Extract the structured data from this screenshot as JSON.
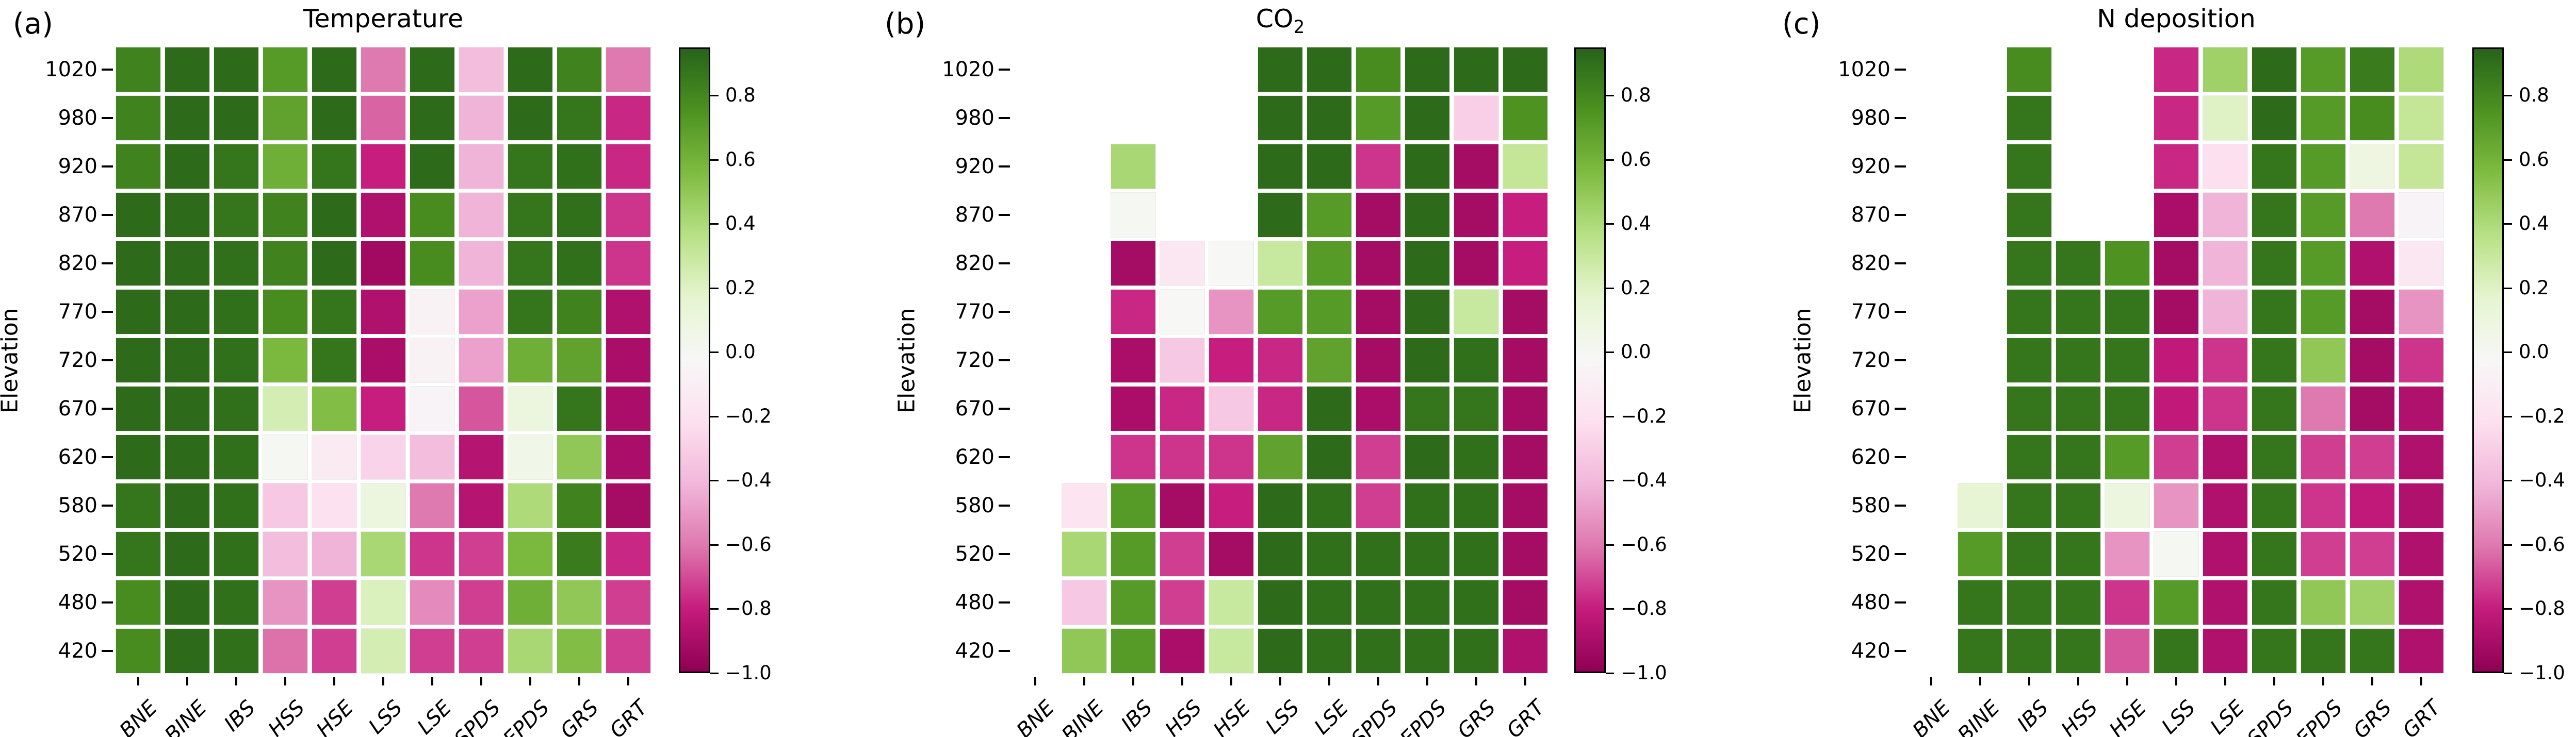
{
  "figure": {
    "background": "#ffffff",
    "colormap": "PiYG",
    "vmin": -1.0,
    "vmax": 0.95,
    "colorbar_tick_values": [
      0.8,
      0.6,
      0.4,
      0.2,
      0.0,
      -0.2,
      -0.4,
      -0.6,
      -0.8,
      -1.0
    ],
    "colorbar_tick_labels": [
      "0.8",
      "0.6",
      "0.4",
      "0.2",
      "0.0",
      "−0.2",
      "−0.4",
      "−0.6",
      "−0.8",
      "−1.0"
    ],
    "colormap_anchors": [
      "#8e0152",
      "#c51b7d",
      "#de77ae",
      "#f1b6da",
      "#fde0ef",
      "#f7f7f7",
      "#e6f5d0",
      "#b8e186",
      "#7fbc41",
      "#4d9221",
      "#276419"
    ]
  },
  "chart_data": [
    {
      "type": "heatmap",
      "panel_label": "(a)",
      "title": "Temperature",
      "title_sub": "",
      "ylabel": "Elevation",
      "y_categories": [
        "1020",
        "980",
        "920",
        "870",
        "820",
        "770",
        "720",
        "670",
        "620",
        "580",
        "520",
        "480",
        "420"
      ],
      "x_categories": [
        "BNE",
        "BINE",
        "IBS",
        "HSS",
        "HSE",
        "LSS",
        "LSE",
        "SPDS",
        "EPDS",
        "GRS",
        "GRT"
      ],
      "ylim": [
        -1.0,
        0.95
      ],
      "legend_position": "right-colorbar",
      "values": [
        [
          0.82,
          0.92,
          0.92,
          0.72,
          0.92,
          -0.6,
          0.92,
          -0.38,
          0.92,
          0.82,
          -0.6
        ],
        [
          0.82,
          0.92,
          0.92,
          0.68,
          0.92,
          -0.65,
          0.92,
          -0.42,
          0.92,
          0.88,
          -0.78
        ],
        [
          0.82,
          0.92,
          0.88,
          0.62,
          0.88,
          -0.8,
          0.92,
          -0.42,
          0.88,
          0.9,
          -0.78
        ],
        [
          0.92,
          0.92,
          0.88,
          0.82,
          0.92,
          -0.88,
          0.78,
          -0.42,
          0.88,
          0.9,
          -0.75
        ],
        [
          0.92,
          0.92,
          0.9,
          0.82,
          0.92,
          -0.93,
          0.78,
          -0.42,
          0.88,
          0.9,
          -0.75
        ],
        [
          0.92,
          0.92,
          0.9,
          0.78,
          0.88,
          -0.88,
          -0.07,
          -0.48,
          0.88,
          0.82,
          -0.88
        ],
        [
          0.92,
          0.92,
          0.9,
          0.58,
          0.88,
          -0.9,
          -0.07,
          -0.48,
          0.62,
          0.68,
          -0.9
        ],
        [
          0.92,
          0.92,
          0.9,
          0.25,
          0.55,
          -0.8,
          -0.06,
          -0.68,
          0.1,
          0.88,
          -0.9
        ],
        [
          0.92,
          0.92,
          0.9,
          0.0,
          -0.13,
          -0.28,
          -0.38,
          -0.86,
          0.05,
          0.5,
          -0.9
        ],
        [
          0.88,
          0.92,
          0.9,
          -0.33,
          -0.2,
          0.1,
          -0.6,
          -0.86,
          0.4,
          0.82,
          -0.92
        ],
        [
          0.88,
          0.92,
          0.9,
          -0.38,
          -0.42,
          0.42,
          -0.75,
          -0.73,
          0.58,
          0.85,
          -0.78
        ],
        [
          0.78,
          0.92,
          0.9,
          -0.52,
          -0.73,
          0.22,
          -0.55,
          -0.73,
          0.62,
          0.5,
          -0.73
        ],
        [
          0.78,
          0.92,
          0.9,
          -0.62,
          -0.73,
          0.25,
          -0.73,
          -0.73,
          0.42,
          0.55,
          -0.73
        ]
      ]
    },
    {
      "type": "heatmap",
      "panel_label": "(b)",
      "title": "CO",
      "title_sub": "2",
      "ylabel": "Elevation",
      "y_categories": [
        "1020",
        "980",
        "920",
        "870",
        "820",
        "770",
        "720",
        "670",
        "620",
        "580",
        "520",
        "480",
        "420"
      ],
      "x_categories": [
        "BNE",
        "BINE",
        "IBS",
        "HSS",
        "HSE",
        "LSS",
        "LSE",
        "SPDS",
        "EPDS",
        "GRS",
        "GRT"
      ],
      "ylim": [
        -1.0,
        0.95
      ],
      "legend_position": "right-colorbar",
      "values": [
        [
          null,
          null,
          null,
          null,
          null,
          0.92,
          0.92,
          0.78,
          0.92,
          0.92,
          0.92
        ],
        [
          null,
          null,
          null,
          null,
          null,
          0.92,
          0.92,
          0.72,
          0.92,
          -0.3,
          0.75
        ],
        [
          null,
          null,
          0.42,
          null,
          null,
          0.92,
          0.92,
          -0.75,
          0.92,
          -0.92,
          0.32
        ],
        [
          null,
          null,
          0.0,
          null,
          null,
          0.92,
          0.72,
          -0.92,
          0.92,
          -0.92,
          -0.8
        ],
        [
          null,
          null,
          -0.92,
          -0.16,
          -0.02,
          0.3,
          0.72,
          -0.92,
          0.92,
          -0.92,
          -0.8
        ],
        [
          null,
          null,
          -0.78,
          -0.02,
          -0.52,
          0.72,
          0.72,
          -0.92,
          0.92,
          0.3,
          -0.92
        ],
        [
          null,
          null,
          -0.9,
          -0.33,
          -0.8,
          -0.78,
          0.68,
          -0.92,
          0.92,
          0.9,
          -0.92
        ],
        [
          null,
          null,
          -0.9,
          -0.78,
          -0.33,
          -0.78,
          0.92,
          -0.9,
          0.88,
          0.88,
          -0.92
        ],
        [
          null,
          null,
          -0.75,
          -0.75,
          -0.75,
          0.68,
          0.92,
          -0.73,
          0.92,
          0.9,
          -0.92
        ],
        [
          null,
          -0.18,
          0.72,
          -0.92,
          -0.8,
          0.92,
          0.9,
          -0.73,
          0.9,
          0.9,
          -0.92
        ],
        [
          null,
          0.42,
          0.72,
          -0.73,
          -0.92,
          0.92,
          0.9,
          0.9,
          0.9,
          0.9,
          -0.92
        ],
        [
          null,
          -0.33,
          0.72,
          -0.73,
          0.3,
          0.92,
          0.9,
          0.9,
          0.9,
          0.9,
          -0.92
        ],
        [
          null,
          0.5,
          0.72,
          -0.9,
          0.3,
          0.92,
          0.9,
          0.9,
          0.9,
          0.9,
          -0.88
        ]
      ]
    },
    {
      "type": "heatmap",
      "panel_label": "(c)",
      "title": "N deposition",
      "title_sub": "",
      "ylabel": "Elevation",
      "y_categories": [
        "1020",
        "980",
        "920",
        "870",
        "820",
        "770",
        "720",
        "670",
        "620",
        "580",
        "520",
        "480",
        "420"
      ],
      "x_categories": [
        "BNE",
        "BINE",
        "IBS",
        "HSS",
        "HSE",
        "LSS",
        "LSE",
        "SPDS",
        "EPDS",
        "GRS",
        "GRT"
      ],
      "ylim": [
        -1.0,
        0.95
      ],
      "legend_position": "right-colorbar",
      "values": [
        [
          null,
          null,
          0.78,
          null,
          null,
          -0.78,
          0.45,
          0.92,
          0.72,
          0.85,
          0.4
        ],
        [
          null,
          null,
          0.88,
          null,
          null,
          -0.78,
          0.2,
          0.92,
          0.72,
          0.78,
          0.32
        ],
        [
          null,
          null,
          0.88,
          null,
          null,
          -0.78,
          -0.22,
          0.88,
          0.72,
          0.08,
          0.32
        ],
        [
          null,
          null,
          0.88,
          null,
          null,
          -0.9,
          -0.42,
          0.88,
          0.72,
          -0.6,
          -0.06
        ],
        [
          null,
          null,
          0.88,
          0.88,
          0.75,
          -0.92,
          -0.42,
          0.88,
          0.72,
          -0.88,
          -0.16
        ],
        [
          null,
          null,
          0.88,
          0.88,
          0.88,
          -0.92,
          -0.42,
          0.88,
          0.72,
          -0.92,
          -0.52
        ],
        [
          null,
          null,
          0.88,
          0.88,
          0.88,
          -0.82,
          -0.75,
          0.88,
          0.5,
          -0.92,
          -0.75
        ],
        [
          null,
          null,
          0.88,
          0.88,
          0.88,
          -0.82,
          -0.75,
          0.88,
          -0.6,
          -0.92,
          -0.88
        ],
        [
          null,
          null,
          0.88,
          0.88,
          0.72,
          -0.73,
          -0.88,
          0.88,
          -0.73,
          -0.73,
          -0.88
        ],
        [
          null,
          0.15,
          0.88,
          0.88,
          0.1,
          -0.52,
          -0.88,
          0.88,
          -0.75,
          -0.82,
          -0.88
        ],
        [
          null,
          0.72,
          0.88,
          0.88,
          -0.52,
          0.0,
          -0.88,
          0.88,
          -0.73,
          -0.73,
          -0.88
        ],
        [
          null,
          0.88,
          0.88,
          0.88,
          -0.75,
          0.72,
          -0.88,
          0.88,
          0.5,
          0.45,
          -0.88
        ],
        [
          null,
          0.88,
          0.88,
          0.88,
          -0.68,
          0.88,
          -0.88,
          0.88,
          0.88,
          0.88,
          -0.88
        ]
      ]
    }
  ]
}
